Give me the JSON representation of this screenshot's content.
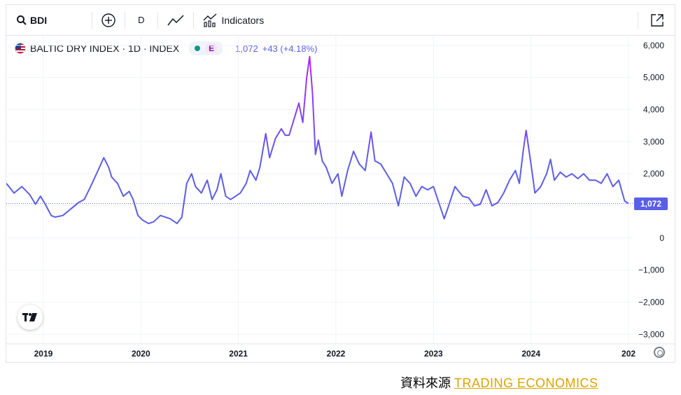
{
  "toolbar": {
    "symbol": "BDI",
    "interval": "D",
    "indicators_label": "Indicators"
  },
  "legend": {
    "title": "BALTIC DRY INDEX · 1D · INDEX",
    "badge_letter": "E",
    "last_value": "1,072",
    "change": "+43 (+4.18%)"
  },
  "price_tag": "1,072",
  "source": {
    "prefix": "資料來源",
    "brand": "TRADING ECONOMICS"
  },
  "colors": {
    "line_base": "#5b5ee6",
    "line_peak": "#b026ff",
    "grid": "#f0f3fa"
  },
  "chart_data": {
    "type": "line",
    "title": "BALTIC DRY INDEX · 1D · INDEX",
    "xlabel": "",
    "ylabel": "",
    "ylim": [
      -3300,
      6300
    ],
    "y_ticks": [
      "6,000",
      "5,000",
      "4,000",
      "3,000",
      "2,000",
      "1,000",
      "0",
      "−1,000",
      "−2,000",
      "−3,000"
    ],
    "y_tick_values": [
      6000,
      5000,
      4000,
      3000,
      2000,
      1000,
      0,
      -1000,
      -2000,
      -3000
    ],
    "x_ticks": [
      "2019",
      "2020",
      "2021",
      "2022",
      "2023",
      "2024",
      "202"
    ],
    "x_tick_values": [
      2019.0,
      2020.0,
      2021.0,
      2022.0,
      2023.0,
      2024.0,
      2025.0
    ],
    "xlim": [
      2018.62,
      2025.05
    ],
    "last_value": 1072,
    "grid": true,
    "series": [
      {
        "x": [
          2018.62,
          2018.7,
          2018.78,
          2018.86,
          2018.92,
          2018.97,
          2019.02,
          2019.08,
          2019.12,
          2019.2,
          2019.3,
          2019.36,
          2019.42,
          2019.5,
          2019.56,
          2019.62,
          2019.67,
          2019.7,
          2019.76,
          2019.82,
          2019.88,
          2019.92,
          2019.97,
          2020.02,
          2020.08,
          2020.13,
          2020.2,
          2020.3,
          2020.37,
          2020.42,
          2020.47,
          2020.52,
          2020.56,
          2020.62,
          2020.68,
          2020.73,
          2020.78,
          2020.82,
          2020.87,
          2020.92,
          2020.97,
          2021.02,
          2021.08,
          2021.12,
          2021.18,
          2021.22,
          2021.28,
          2021.32,
          2021.38,
          2021.44,
          2021.48,
          2021.52,
          2021.57,
          2021.62,
          2021.66,
          2021.7,
          2021.73,
          2021.76,
          2021.79,
          2021.82,
          2021.86,
          2021.9,
          2021.96,
          2022.02,
          2022.06,
          2022.12,
          2022.18,
          2022.24,
          2022.3,
          2022.36,
          2022.4,
          2022.46,
          2022.52,
          2022.58,
          2022.64,
          2022.7,
          2022.76,
          2022.82,
          2022.88,
          2022.94,
          2023.0,
          2023.06,
          2023.11,
          2023.15,
          2023.22,
          2023.3,
          2023.36,
          2023.42,
          2023.48,
          2023.54,
          2023.6,
          2023.66,
          2023.72,
          2023.78,
          2023.84,
          2023.88,
          2023.92,
          2023.95,
          2024.0,
          2024.04,
          2024.1,
          2024.16,
          2024.2,
          2024.24,
          2024.3,
          2024.36,
          2024.42,
          2024.48,
          2024.54,
          2024.6,
          2024.66,
          2024.72,
          2024.78,
          2024.84,
          2024.9,
          2024.96,
          2025.0
        ],
        "y": [
          1700,
          1400,
          1600,
          1350,
          1050,
          1300,
          1050,
          700,
          650,
          700,
          950,
          1100,
          1200,
          1700,
          2100,
          2500,
          2200,
          1900,
          1700,
          1300,
          1450,
          1200,
          700,
          550,
          450,
          500,
          700,
          600,
          450,
          650,
          1700,
          2000,
          1600,
          1400,
          1800,
          1200,
          1500,
          2000,
          1300,
          1200,
          1300,
          1400,
          1700,
          2100,
          1800,
          2200,
          3250,
          2500,
          3100,
          3400,
          3200,
          3200,
          3700,
          4200,
          3600,
          5000,
          5650,
          4500,
          2600,
          3050,
          2400,
          2200,
          1700,
          2000,
          1300,
          2100,
          2700,
          2300,
          2100,
          3300,
          2400,
          2300,
          2000,
          1700,
          1000,
          1900,
          1700,
          1300,
          1600,
          1500,
          1600,
          1050,
          600,
          950,
          1600,
          1300,
          1250,
          1000,
          1050,
          1500,
          1000,
          1100,
          1400,
          1800,
          2100,
          1700,
          2700,
          3350,
          2300,
          1400,
          1600,
          2000,
          2450,
          1800,
          2050,
          1900,
          2000,
          1850,
          2000,
          1800,
          1800,
          1700,
          2000,
          1600,
          1800,
          1150,
          1072
        ]
      }
    ]
  }
}
